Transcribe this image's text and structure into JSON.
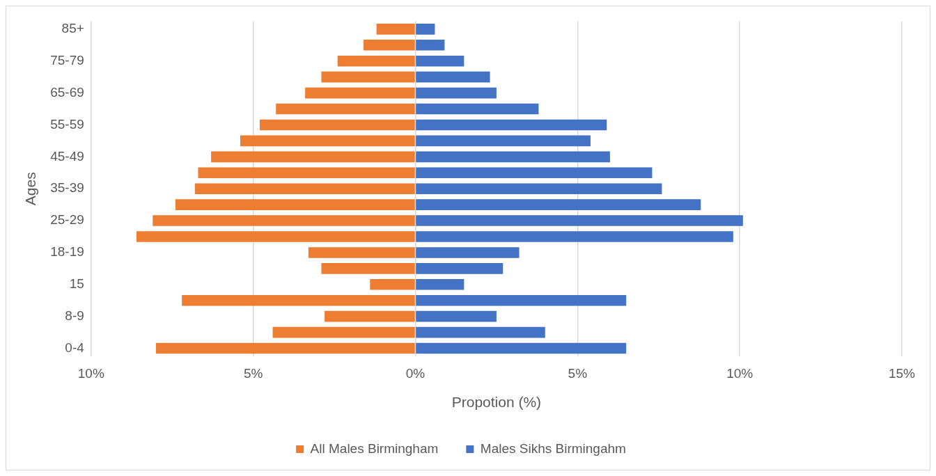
{
  "chart_data": {
    "type": "bar",
    "orientation": "horizontal",
    "stacked": true,
    "xlabel": "Propotion (%)",
    "ylabel": "Ages",
    "categories": [
      "85+",
      null,
      "75-79",
      null,
      "65-69",
      null,
      "55-59",
      null,
      "45-49",
      null,
      "35-39",
      null,
      "25-29",
      null,
      "18-19",
      null,
      "15",
      null,
      "8-9",
      null,
      "0-4"
    ],
    "series": [
      {
        "name": "All Males Birmingham",
        "color": "#ed7d31",
        "values": [
          -1.2,
          -1.6,
          -2.4,
          -2.9,
          -3.4,
          -4.3,
          -4.8,
          -5.4,
          -6.3,
          -6.7,
          -6.8,
          -7.4,
          -8.1,
          -8.6,
          -3.3,
          -2.9,
          -1.4,
          -7.2,
          -2.8,
          -4.4,
          -8.0
        ]
      },
      {
        "name": "Males Sikhs Birmingahm",
        "color": "#4472c4",
        "values": [
          0.6,
          0.9,
          1.5,
          2.3,
          2.5,
          3.8,
          5.9,
          5.4,
          6.0,
          7.3,
          7.6,
          8.8,
          10.1,
          9.8,
          3.2,
          2.7,
          1.5,
          6.5,
          2.5,
          4.0,
          6.5
        ]
      }
    ],
    "xlim": [
      -10,
      15
    ],
    "xticks": [
      {
        "value": -10,
        "label": "10%"
      },
      {
        "value": -5,
        "label": "5%"
      },
      {
        "value": 0,
        "label": "0%"
      },
      {
        "value": 5,
        "label": "5%"
      },
      {
        "value": 10,
        "label": "10%"
      },
      {
        "value": 15,
        "label": "15%"
      }
    ],
    "grid": "x",
    "legend": "bottom"
  }
}
